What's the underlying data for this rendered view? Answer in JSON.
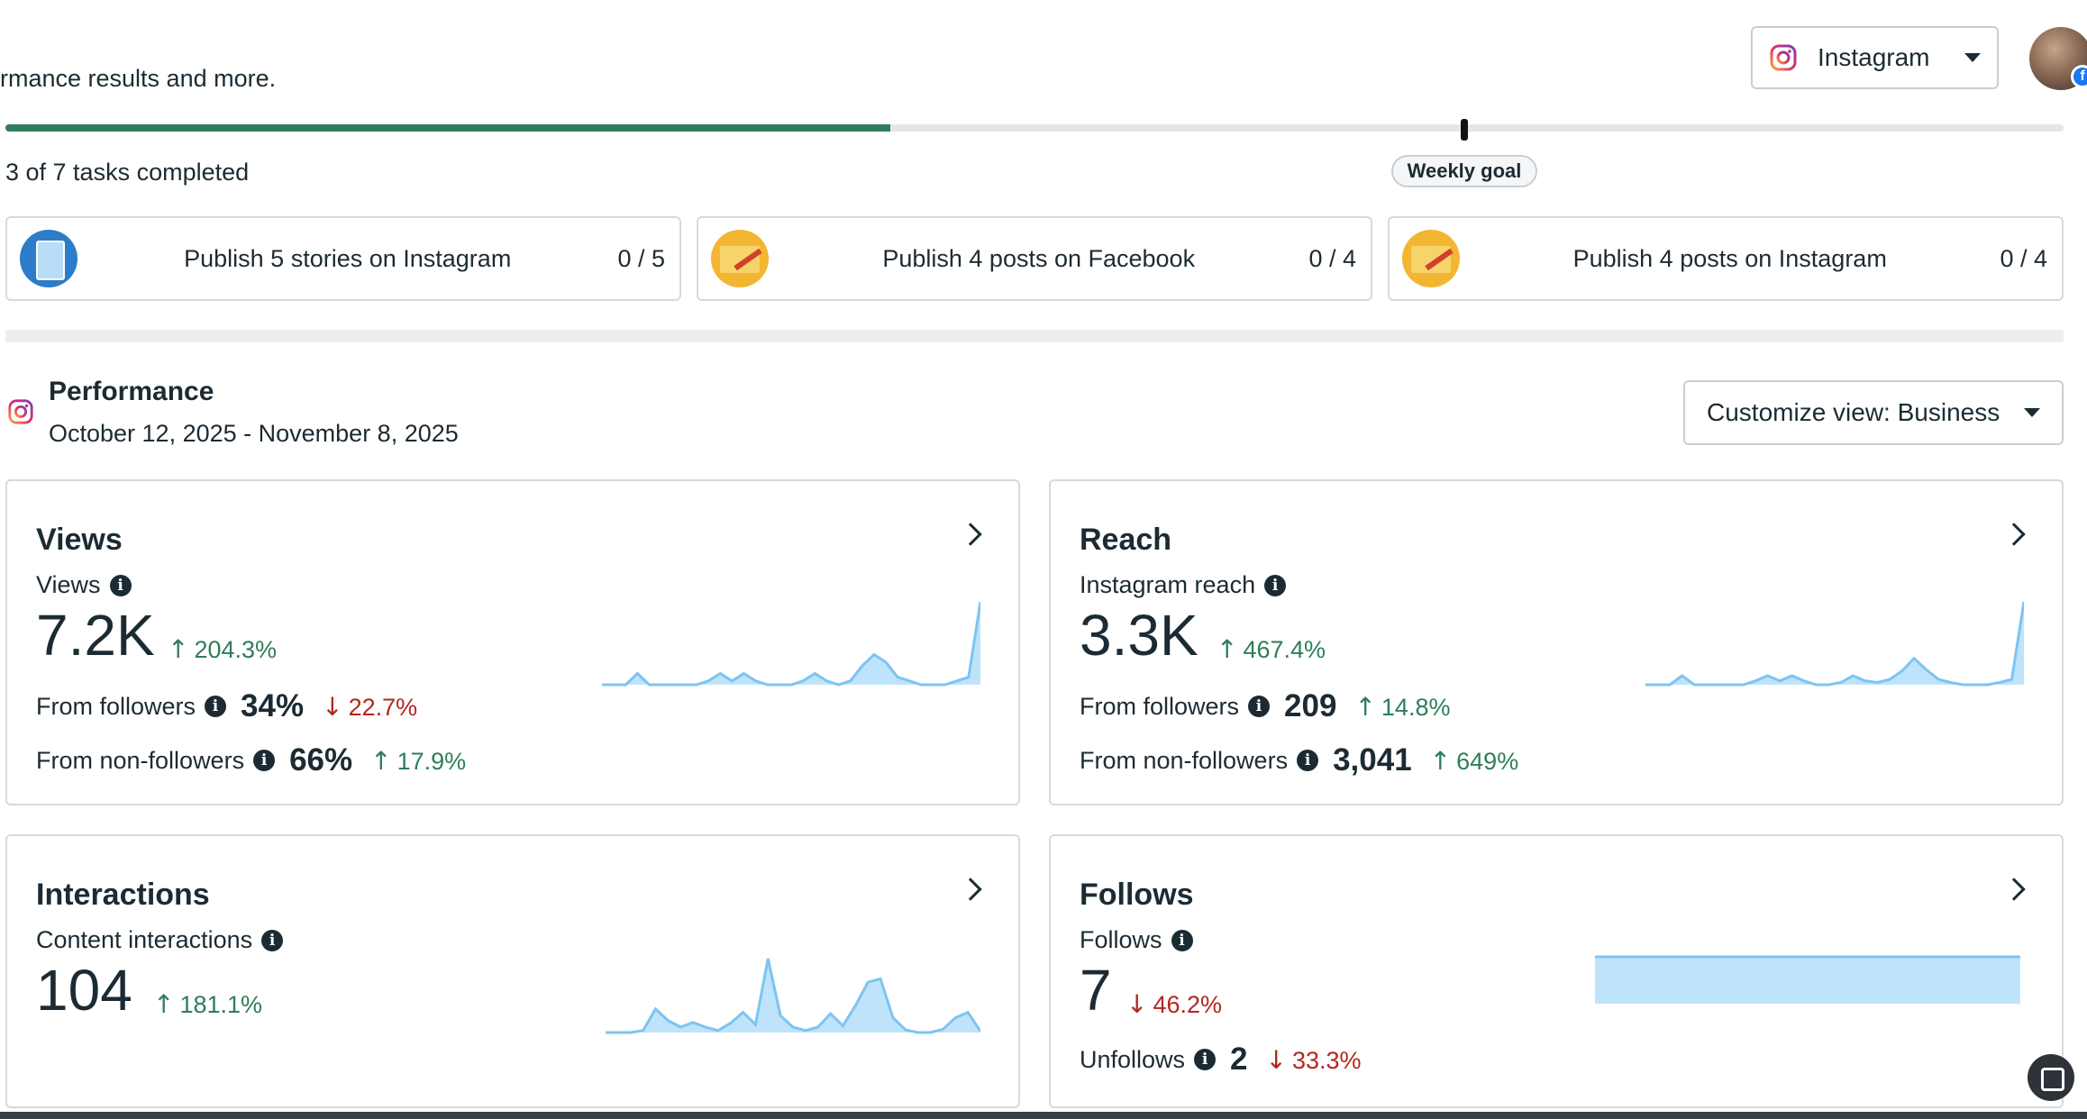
{
  "header": {
    "subtitle_fragment": "rmance results and more.",
    "platform_label": "Instagram"
  },
  "goals": {
    "progress_fraction": 0.43,
    "tasks_text": "3 of 7 tasks completed",
    "weekly_goal_label": "Weekly goal",
    "tasks": [
      {
        "label": "Publish 5 stories on Instagram",
        "count": "0 / 5",
        "icon": "stories-thumbnail-icon"
      },
      {
        "label": "Publish 4 posts on Facebook",
        "count": "0 / 4",
        "icon": "compose-post-thumbnail-icon"
      },
      {
        "label": "Publish 4 posts on Instagram",
        "count": "0 / 4",
        "icon": "compose-post-thumbnail-icon"
      }
    ]
  },
  "performance": {
    "title": "Performance",
    "date_range": "October 12, 2025 - November 8, 2025",
    "customize_label": "Customize view: Business"
  },
  "cards": {
    "views": {
      "title": "Views",
      "metric_label": "Views",
      "value": "7.2K",
      "change": "204.3%",
      "rows": [
        {
          "label": "From followers",
          "value": "34%",
          "change": "22.7%",
          "dir": "down"
        },
        {
          "label": "From non-followers",
          "value": "66%",
          "change": "17.9%",
          "dir": "up"
        }
      ]
    },
    "reach": {
      "title": "Reach",
      "metric_label": "Instagram reach",
      "value": "3.3K",
      "change": "467.4%",
      "rows": [
        {
          "label": "From followers",
          "value": "209",
          "change": "14.8%",
          "dir": "up"
        },
        {
          "label": "From non-followers",
          "value": "3,041",
          "change": "649%",
          "dir": "up"
        }
      ]
    },
    "interactions": {
      "title": "Interactions",
      "metric_label": "Content interactions",
      "value": "104",
      "change": "181.1%"
    },
    "follows": {
      "title": "Follows",
      "metric_label": "Follows",
      "value": "7",
      "change": "46.2%",
      "unfollows_label": "Unfollows",
      "unfollows_value": "2",
      "unfollows_change": "33.3%"
    }
  },
  "colors": {
    "success": "#2f7d5a",
    "danger": "#b3261e",
    "spark_fill": "#bfe3fb",
    "spark_line": "#7cc4f2"
  },
  "sparklines": {
    "views": [
      0,
      0,
      0,
      1.5,
      0,
      0,
      0,
      0,
      0,
      0.5,
      1.5,
      0.5,
      1.5,
      0.5,
      0,
      0,
      0,
      0.5,
      1.5,
      0.5,
      0,
      0.5,
      2.5,
      4,
      3,
      1,
      0.5,
      0,
      0,
      0,
      0.5,
      1,
      11
    ],
    "reach": [
      0,
      0,
      0,
      1.2,
      0,
      0,
      0,
      0,
      0,
      0.5,
      1.2,
      0.5,
      1.2,
      0.5,
      0,
      0,
      0.3,
      1.2,
      0.5,
      0.3,
      0.7,
      1.8,
      3.5,
      2,
      0.7,
      0.3,
      0,
      0,
      0,
      0.3,
      0.7,
      11
    ],
    "interactions": [
      0,
      0,
      0,
      0.3,
      3.5,
      1.8,
      0.8,
      1.5,
      0.8,
      0.3,
      1.4,
      3,
      1.2,
      11,
      2.5,
      0.8,
      0.3,
      0.8,
      2.8,
      1,
      4,
      7.5,
      8,
      2.2,
      0.4,
      0,
      0,
      0.5,
      2.2,
      3,
      0.2
    ],
    "follows": [
      1,
      1,
      1,
      1,
      1,
      1,
      1,
      1,
      1,
      1
    ]
  }
}
